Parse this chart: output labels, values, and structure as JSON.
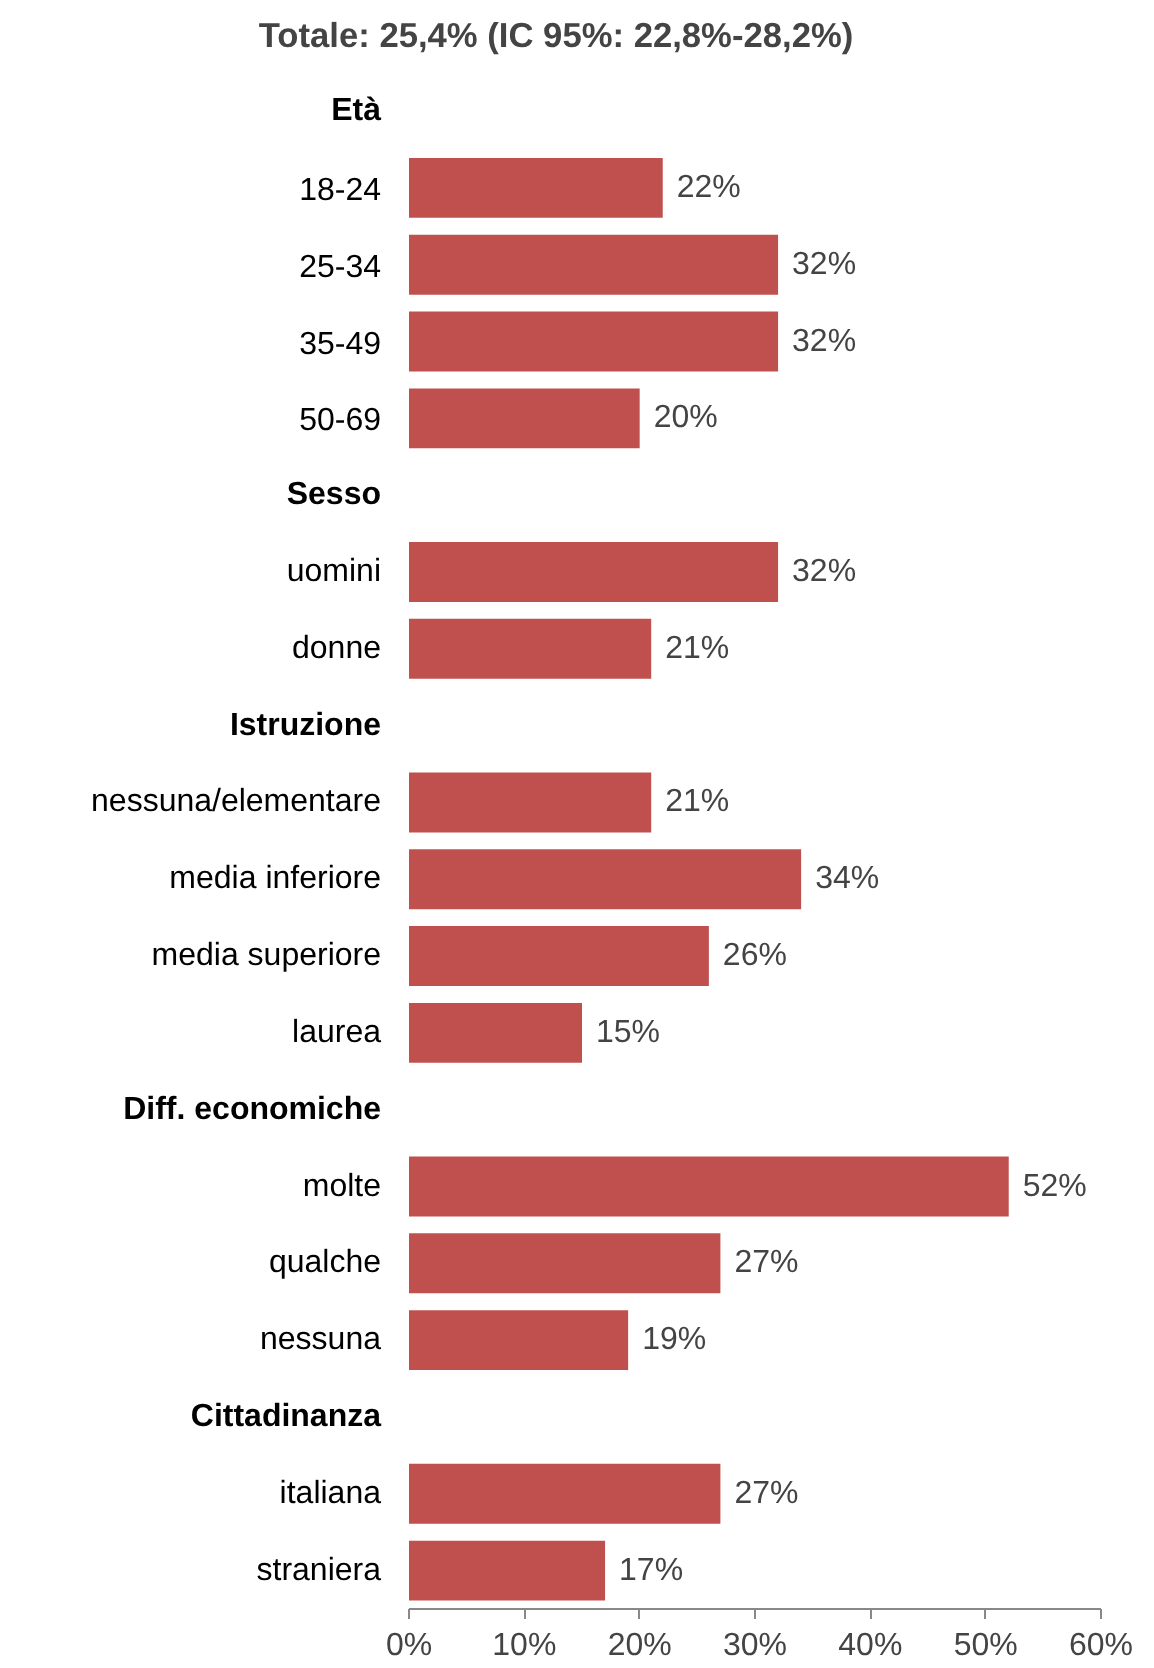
{
  "chart_data": {
    "type": "bar",
    "orientation": "horizontal",
    "title": "Totale: 25,4% (IC 95%: 22,8%-28,2%)",
    "categories": [
      "Età",
      "18-24",
      "25-34",
      "35-49",
      "50-69",
      "Sesso",
      "uomini",
      "donne",
      "Istruzione",
      "nessuna/elementare",
      "media inferiore",
      "media superiore",
      "laurea",
      "Diff. economiche",
      "molte",
      "qualche",
      "nessuna",
      "Cittadinanza",
      "italiana",
      "straniera"
    ],
    "values": [
      null,
      22,
      32,
      32,
      20,
      null,
      32,
      21,
      null,
      21,
      34,
      26,
      15,
      null,
      52,
      27,
      19,
      null,
      27,
      17
    ],
    "value_labels": [
      null,
      "22%",
      "32%",
      "32%",
      "20%",
      null,
      "32%",
      "21%",
      null,
      "21%",
      "34%",
      "26%",
      "15%",
      null,
      "52%",
      "27%",
      "19%",
      null,
      "27%",
      "17%"
    ],
    "color": "#c0504d",
    "xlim": [
      0,
      60
    ],
    "xticks": [
      {
        "value": 0,
        "label": "0%"
      },
      {
        "value": 10,
        "label": "10%"
      },
      {
        "value": 20,
        "label": "20%"
      },
      {
        "value": 30,
        "label": "30%"
      },
      {
        "value": 40,
        "label": "40%"
      },
      {
        "value": 50,
        "label": "50%"
      },
      {
        "value": 60,
        "label": "60%"
      }
    ],
    "grid": false
  }
}
